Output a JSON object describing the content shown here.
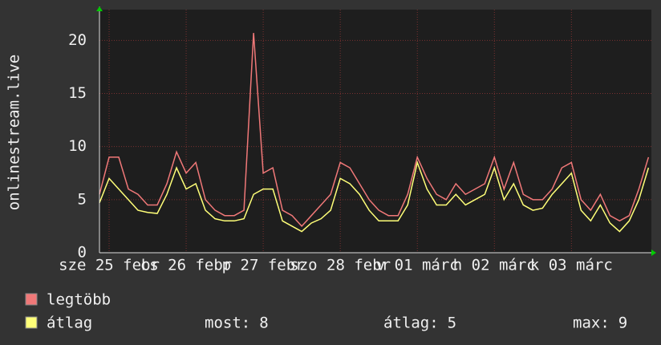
{
  "chart_data": {
    "type": "line",
    "y_label": "onlinestream.live",
    "xlim": [
      0,
      57.3
    ],
    "xticks": [
      {
        "value": 1,
        "label": "sze 25 febr"
      },
      {
        "value": 9,
        "label": "cs 26 febr"
      },
      {
        "value": 17,
        "label": "p 27 febr"
      },
      {
        "value": 25,
        "label": "szo 28 febr"
      },
      {
        "value": 33,
        "label": "v 01 márc"
      },
      {
        "value": 41,
        "label": "h 02 márc"
      },
      {
        "value": 49,
        "label": "k 03 márc"
      }
    ],
    "ylim": [
      0,
      22.9
    ],
    "yticks": [
      0,
      5,
      10,
      15,
      20
    ],
    "grid": true,
    "series": [
      {
        "name": "legtöbb",
        "color": "#f07878",
        "values": [
          5.5,
          9,
          9,
          6,
          5.5,
          4.5,
          4.5,
          6.5,
          9.5,
          7.5,
          8.5,
          5,
          4,
          3.5,
          3.5,
          4,
          20.7,
          7.5,
          8,
          4,
          3.5,
          2.5,
          3.5,
          4.5,
          5.5,
          8.5,
          8,
          6.5,
          5,
          4,
          3.5,
          3.5,
          5.5,
          9,
          7,
          5.5,
          5,
          6.5,
          5.5,
          6,
          6.5,
          9,
          6,
          8.5,
          5.5,
          5,
          5,
          6,
          8,
          8.5,
          5,
          4,
          5.5,
          3.5,
          3,
          3.5,
          6,
          9
        ]
      },
      {
        "name": "átlag",
        "color": "#ffff78",
        "values": [
          4.7,
          7,
          6,
          5,
          4,
          3.8,
          3.7,
          5.5,
          8,
          6,
          6.5,
          4,
          3.2,
          3,
          3,
          3.2,
          5.5,
          6,
          6,
          3,
          2.5,
          2,
          2.8,
          3.2,
          4,
          7,
          6.5,
          5.5,
          4,
          3,
          3,
          3,
          4.5,
          8.5,
          6,
          4.5,
          4.5,
          5.5,
          4.5,
          5,
          5.5,
          8,
          5,
          6.5,
          4.5,
          4,
          4.2,
          5.5,
          6.5,
          7.5,
          4,
          3,
          4.5,
          2.8,
          2,
          3,
          5,
          8
        ]
      }
    ],
    "stats": [
      {
        "label": "most:",
        "value": 8
      },
      {
        "label": "átlag:",
        "value": 5
      },
      {
        "label": "max:",
        "value": 9
      }
    ]
  }
}
